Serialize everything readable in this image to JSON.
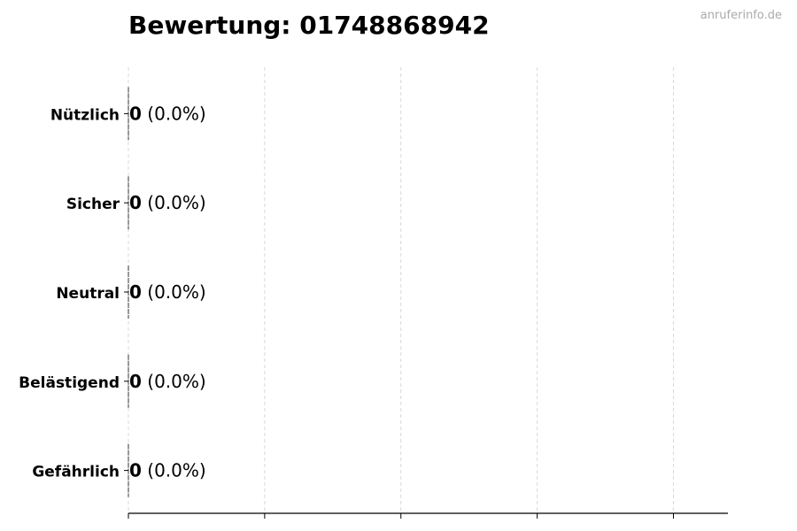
{
  "watermark": "anruferinfo.de",
  "chart_data": {
    "type": "bar",
    "orientation": "horizontal",
    "title": "Bewertung: 01748868942",
    "categories": [
      "Nützlich",
      "Sicher",
      "Neutral",
      "Belästigend",
      "Gefährlich"
    ],
    "values": [
      0,
      0,
      0,
      0,
      0
    ],
    "data_labels": [
      {
        "count": "0",
        "percent": "(0.0%)"
      },
      {
        "count": "0",
        "percent": "(0.0%)"
      },
      {
        "count": "0",
        "percent": "(0.0%)"
      },
      {
        "count": "0",
        "percent": "(0.0%)"
      },
      {
        "count": "0",
        "percent": "(0.0%)"
      }
    ],
    "xlim": [
      0,
      4.4
    ],
    "xticks": [
      0,
      1,
      2,
      3,
      4
    ],
    "grid": "x dashed",
    "xlabel": "",
    "ylabel": ""
  }
}
